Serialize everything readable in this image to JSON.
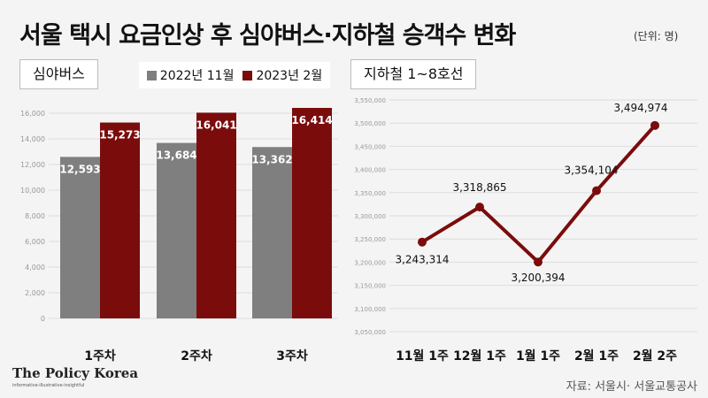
{
  "header": {
    "title": "서울 택시 요금인상 후 심야버스·지하철 승객수 변화",
    "unit": "(단위: 명)"
  },
  "legend": {
    "items": [
      {
        "label": "2022년 11월",
        "color": "#7f7f7f"
      },
      {
        "label": "2023년 2월",
        "color": "#7b0c0c"
      }
    ]
  },
  "footer": {
    "logo": "The Policy Korea",
    "tagline": "informative·illustrative·insightful",
    "source": "자료: 서울시· 서울교통공사"
  },
  "chart_data": [
    {
      "type": "bar",
      "panel_label": "심야버스",
      "categories": [
        "1주차",
        "2주차",
        "3주차"
      ],
      "series": [
        {
          "name": "2022년 11월",
          "values": [
            12593,
            13684,
            13362
          ]
        },
        {
          "name": "2023년 2월",
          "values": [
            15273,
            16041,
            16414
          ]
        }
      ],
      "value_labels": [
        [
          "12,593",
          "13,684",
          "13,362"
        ],
        [
          "15,273",
          "16,041",
          "16,414"
        ]
      ],
      "ylim": [
        0,
        16000
      ],
      "yticks": [
        0,
        2000,
        4000,
        6000,
        8000,
        10000,
        12000,
        14000,
        16000
      ],
      "ytick_labels": [
        "0",
        "2,000",
        "4,000",
        "6,000",
        "8,000",
        "10,000",
        "12,000",
        "14,000",
        "16,000"
      ],
      "colors": [
        "#7f7f7f",
        "#7b0c0c"
      ],
      "grid": true
    },
    {
      "type": "line",
      "panel_label": "지하철 1~8호선",
      "categories": [
        "11월 1주",
        "12월 1주",
        "1월 1주",
        "2월 1주",
        "2월 2주"
      ],
      "values": [
        3243314,
        3318865,
        3200394,
        3354104,
        3494974
      ],
      "value_labels": [
        "3,243,314",
        "3,318,865",
        "3,200,394",
        "3,354,104",
        "3,494,974"
      ],
      "ylim": [
        3050000,
        3550000
      ],
      "yticks": [
        3050000,
        3100000,
        3150000,
        3200000,
        3250000,
        3300000,
        3350000,
        3400000,
        3450000,
        3500000,
        3550000
      ],
      "ytick_labels": [
        "3,050,000",
        "3,100,000",
        "3,150,000",
        "3,200,000",
        "3,250,000",
        "3,300,000",
        "3,350,000",
        "3,400,000",
        "3,450,000",
        "3,500,000",
        "3,550,000"
      ],
      "color": "#7b0c0c",
      "grid": true
    }
  ]
}
